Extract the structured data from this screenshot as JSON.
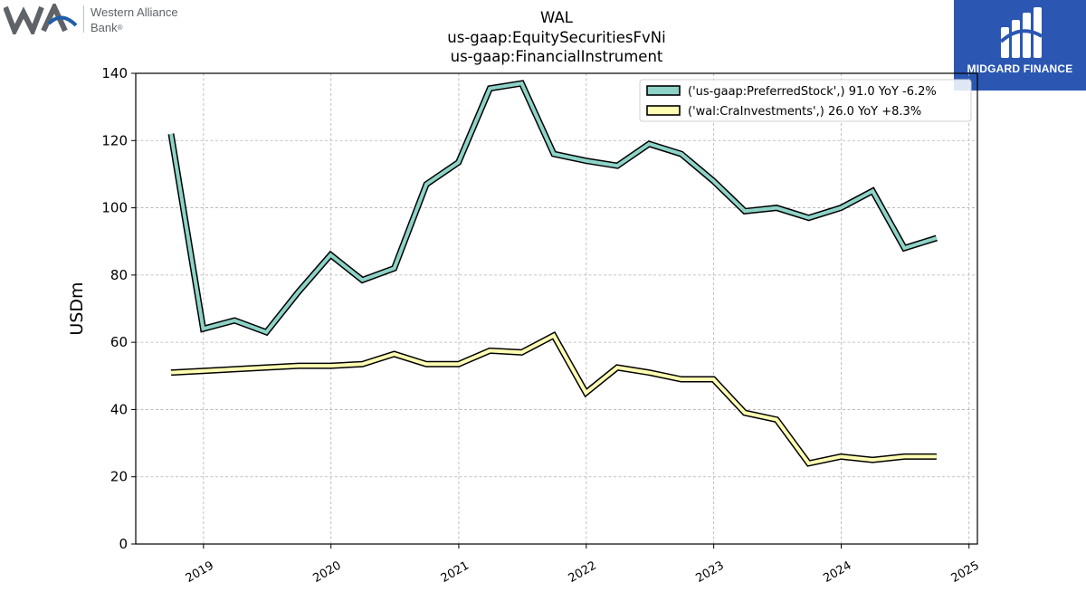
{
  "header": {
    "title_lines": [
      "WAL",
      "us-gaap:EquitySecuritiesFvNi",
      "us-gaap:FinancialInstrument"
    ]
  },
  "logos": {
    "left_name_line1": "Western Alliance",
    "left_name_line2": "Bank",
    "left_trademark": "®",
    "left_mark_color": "#5f6368",
    "left_accent_color": "#1f5fa8",
    "right_brand": "MIDGARD FINANCE",
    "right_bg_color": "#2b57b3"
  },
  "chart_data": {
    "type": "line",
    "ylabel": "USDm",
    "xlabel": "",
    "ylim": [
      0,
      140
    ],
    "yticks": [
      0,
      20,
      40,
      60,
      80,
      100,
      120,
      140
    ],
    "xlim": [
      "2018-06-21",
      "2025-01-25"
    ],
    "xticks": [
      "2019-01-01",
      "2020-01-01",
      "2021-01-01",
      "2022-01-01",
      "2023-01-01",
      "2024-01-01",
      "2025-01-01"
    ],
    "xtick_labels": [
      "2019",
      "2020",
      "2021",
      "2022",
      "2023",
      "2024",
      "2025"
    ],
    "grid": true,
    "legend_position": "top-right",
    "series": [
      {
        "name": "('us-gaap:PreferredStock',) 91.0 YoY -6.2%",
        "color": "#8dd3c7",
        "dates": [
          "2018-09-30",
          "2018-12-31",
          "2019-03-31",
          "2019-06-30",
          "2019-09-30",
          "2019-12-31",
          "2020-03-31",
          "2020-06-30",
          "2020-09-30",
          "2020-12-31",
          "2021-03-31",
          "2021-06-30",
          "2021-09-30",
          "2021-12-31",
          "2022-03-31",
          "2022-06-30",
          "2022-09-30",
          "2022-12-31",
          "2023-03-31",
          "2023-06-30",
          "2023-09-30",
          "2023-12-31",
          "2024-03-31",
          "2024-06-30",
          "2024-09-30"
        ],
        "values": [
          122,
          64,
          66.5,
          63,
          75,
          86,
          78.5,
          82,
          107,
          113.5,
          135.5,
          137,
          116,
          114,
          112.5,
          119,
          116,
          108,
          99,
          100,
          97,
          100,
          105,
          88,
          91
        ]
      },
      {
        "name": "('wal:CraInvestments',) 26.0 YoY +8.3%",
        "color": "#ffffb3",
        "dates": [
          "2018-09-30",
          "2018-12-31",
          "2019-03-31",
          "2019-06-30",
          "2019-09-30",
          "2019-12-31",
          "2020-03-31",
          "2020-06-30",
          "2020-09-30",
          "2020-12-31",
          "2021-03-31",
          "2021-06-30",
          "2021-09-30",
          "2021-12-31",
          "2022-03-31",
          "2022-06-30",
          "2022-09-30",
          "2022-12-31",
          "2023-03-31",
          "2023-06-30",
          "2023-09-30",
          "2023-12-31",
          "2024-03-31",
          "2024-06-30",
          "2024-09-30"
        ],
        "values": [
          51,
          51.5,
          52,
          52.5,
          53,
          53,
          53.5,
          56.5,
          53.5,
          53.5,
          57.5,
          57,
          62,
          45,
          52.5,
          51,
          49,
          49,
          39,
          37,
          24,
          26,
          25,
          26,
          26
        ]
      }
    ]
  }
}
